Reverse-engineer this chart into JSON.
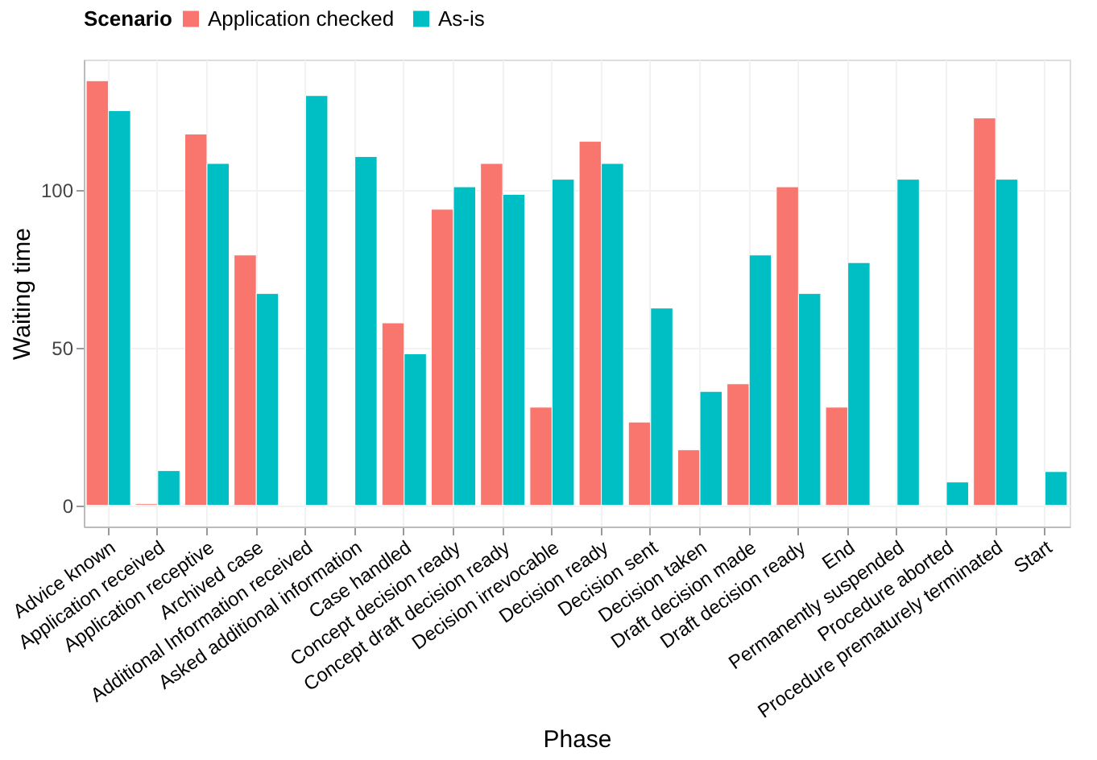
{
  "chart_data": {
    "type": "bar",
    "xlabel": "Phase",
    "ylabel": "Waiting time",
    "legend_title": "Scenario",
    "categories": [
      "Advice known",
      "Application received",
      "Application receptive",
      "Archived case",
      "Additional Information received",
      "Asked additional information",
      "Case handled",
      "Concept decision ready",
      "Concept draft decision ready",
      "Decision irrevocable",
      "Decision ready",
      "Decision sent",
      "Decision taken",
      "Draft decision made",
      "Draft decision ready",
      "End",
      "Permanently suspended",
      "Procedure aborted",
      "Procedure prematurely terminated",
      "Start"
    ],
    "series": [
      {
        "name": "Application checked",
        "color": "#f8766d",
        "values": [
          134.5,
          0.5,
          117.6,
          79.3,
          null,
          null,
          57.8,
          93.8,
          108.3,
          31.1,
          115.3,
          26.4,
          17.6,
          38.5,
          100.9,
          31.1,
          null,
          null,
          122.7,
          null
        ]
      },
      {
        "name": "As-is",
        "color": "#00bfc4",
        "values": [
          125.0,
          11.0,
          108.3,
          67.1,
          129.8,
          110.5,
          48.0,
          100.9,
          98.5,
          103.3,
          108.3,
          62.5,
          36.1,
          79.3,
          67.1,
          76.9,
          103.3,
          7.4,
          103.3,
          10.7
        ]
      }
    ],
    "ylim": [
      -6.7,
      141.2
    ],
    "yticks": [
      0,
      50,
      100
    ],
    "grid": true,
    "legend": "top"
  }
}
